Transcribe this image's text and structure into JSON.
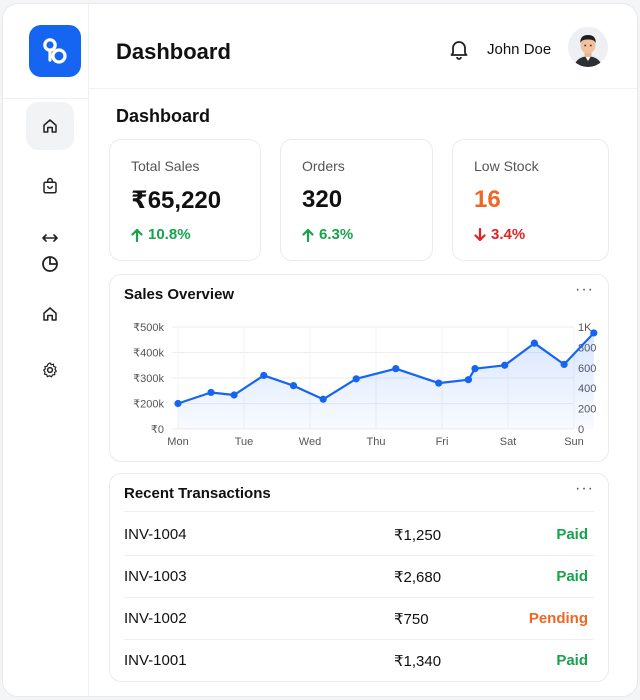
{
  "header": {
    "title": "Dashboard",
    "user_name": "John Doe"
  },
  "section_title": "Dashboard",
  "sidebar": {
    "items": [
      {
        "icon": "home-icon"
      },
      {
        "icon": "shopping-bag-icon"
      },
      {
        "icon": "pie-chart-icon"
      },
      {
        "icon": "home-icon"
      },
      {
        "icon": "gear-icon"
      }
    ]
  },
  "stats": [
    {
      "label": "Total Sales",
      "value": "₹65,220",
      "change": "10.8%",
      "direction": "up"
    },
    {
      "label": "Orders",
      "value": "320",
      "change": "6.3%",
      "direction": "up"
    },
    {
      "label": "Low Stock",
      "value": "16",
      "change": "3.4%",
      "direction": "down"
    }
  ],
  "sales_overview": {
    "title": "Sales Overview",
    "more": "···"
  },
  "chart_data": {
    "type": "line",
    "categories": [
      "Mon",
      "Tue",
      "Wed",
      "Thu",
      "Fri",
      "Sat",
      "Sun"
    ],
    "x": [
      0,
      0.5,
      0.85,
      1.3,
      1.75,
      2.2,
      2.7,
      3.3,
      3.95,
      4.4,
      4.5,
      4.95,
      5.4,
      5.85,
      6.3
    ],
    "values": [
      150000,
      215000,
      200000,
      315000,
      255000,
      175000,
      295000,
      355000,
      270000,
      290000,
      355000,
      375000,
      505000,
      380000,
      565000
    ],
    "y_ticks_left": [
      "₹0",
      "₹200k",
      "₹300k",
      "₹400k",
      "₹500k"
    ],
    "y_ticks_right": [
      "0",
      "200",
      "400",
      "600",
      "800",
      "1K"
    ],
    "ylim": [
      0,
      600000
    ],
    "grid": true,
    "color": "#1565f2"
  },
  "transactions": {
    "title": "Recent Transactions",
    "more": "···",
    "rows": [
      {
        "id": "INV-1004",
        "amount": "₹1,250",
        "status": "Paid"
      },
      {
        "id": "INV-1003",
        "amount": "₹2,680",
        "status": "Paid"
      },
      {
        "id": "INV-1002",
        "amount": "₹750",
        "status": "Pending"
      },
      {
        "id": "INV-1001",
        "amount": "₹1,340",
        "status": "Paid"
      }
    ]
  },
  "colors": {
    "accent": "#1565f2",
    "success": "#16a34a",
    "warning": "#f06624",
    "danger": "#e02424"
  }
}
